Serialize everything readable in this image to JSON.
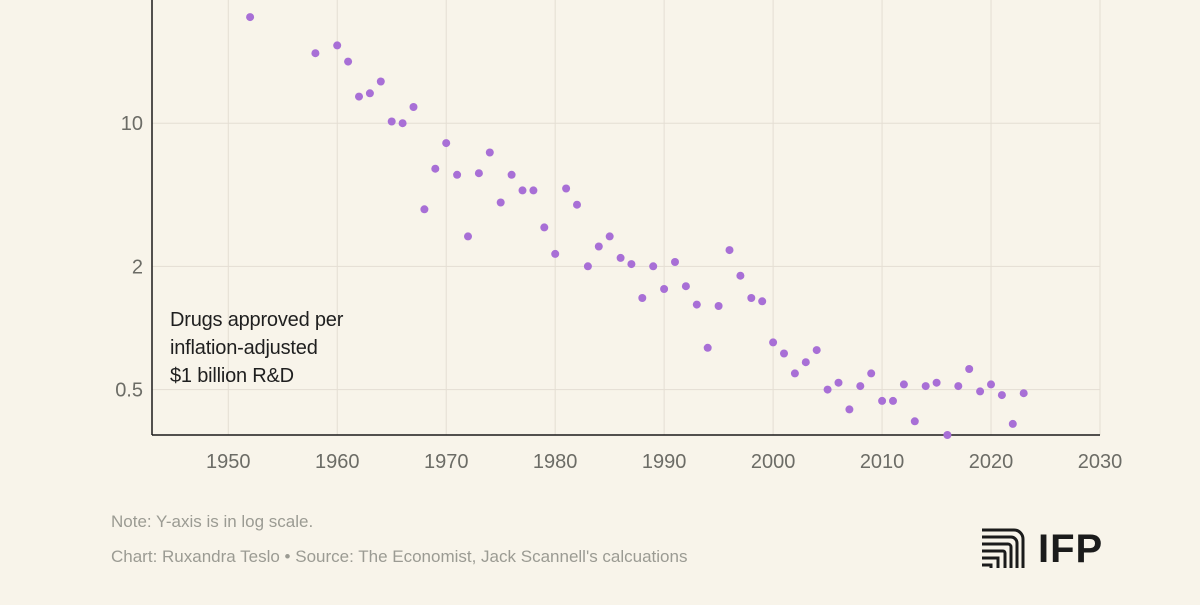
{
  "chart_data": {
    "type": "scatter",
    "yscale": "log",
    "xlim": [
      1943,
      2030
    ],
    "ylim": [
      0.3,
      40
    ],
    "x_ticks": [
      1950,
      1960,
      1970,
      1980,
      1990,
      2000,
      2010,
      2020,
      2030
    ],
    "y_ticks": [
      10,
      2,
      0.5
    ],
    "grid": true,
    "annotation": [
      "Drugs approved per",
      "inflation-adjusted",
      "$1 billion R&D"
    ],
    "point_color": "#a86fd6",
    "series": [
      {
        "points": [
          [
            1952,
            33
          ],
          [
            1958,
            22
          ],
          [
            1960,
            24
          ],
          [
            1961,
            20
          ],
          [
            1962,
            13.5
          ],
          [
            1963,
            14
          ],
          [
            1964,
            16
          ],
          [
            1965,
            10.2
          ],
          [
            1966,
            10
          ],
          [
            1967,
            12
          ],
          [
            1968,
            3.8
          ],
          [
            1969,
            6
          ],
          [
            1970,
            8
          ],
          [
            1971,
            5.6
          ],
          [
            1972,
            2.8
          ],
          [
            1973,
            5.7
          ],
          [
            1974,
            7.2
          ],
          [
            1975,
            4.1
          ],
          [
            1976,
            5.6
          ],
          [
            1977,
            4.7
          ],
          [
            1978,
            4.7
          ],
          [
            1979,
            3.1
          ],
          [
            1980,
            2.3
          ],
          [
            1981,
            4.8
          ],
          [
            1982,
            4.0
          ],
          [
            1983,
            2.0
          ],
          [
            1984,
            2.5
          ],
          [
            1985,
            2.8
          ],
          [
            1986,
            2.2
          ],
          [
            1987,
            2.05
          ],
          [
            1988,
            1.4
          ],
          [
            1989,
            2.0
          ],
          [
            1990,
            1.55
          ],
          [
            1991,
            2.1
          ],
          [
            1992,
            1.6
          ],
          [
            1993,
            1.3
          ],
          [
            1994,
            0.8
          ],
          [
            1995,
            1.28
          ],
          [
            1996,
            2.4
          ],
          [
            1997,
            1.8
          ],
          [
            1998,
            1.4
          ],
          [
            1999,
            1.35
          ],
          [
            2000,
            0.85
          ],
          [
            2001,
            0.75
          ],
          [
            2002,
            0.6
          ],
          [
            2003,
            0.68
          ],
          [
            2004,
            0.78
          ],
          [
            2005,
            0.5
          ],
          [
            2006,
            0.54
          ],
          [
            2007,
            0.4
          ],
          [
            2008,
            0.52
          ],
          [
            2009,
            0.6
          ],
          [
            2010,
            0.44
          ],
          [
            2011,
            0.44
          ],
          [
            2012,
            0.53
          ],
          [
            2013,
            0.35
          ],
          [
            2014,
            0.52
          ],
          [
            2015,
            0.54
          ],
          [
            2016,
            0.3
          ],
          [
            2017,
            0.52
          ],
          [
            2018,
            0.63
          ],
          [
            2019,
            0.49
          ],
          [
            2020,
            0.53
          ],
          [
            2021,
            0.47
          ],
          [
            2022,
            0.34
          ],
          [
            2023,
            0.48
          ]
        ]
      }
    ]
  },
  "footer": {
    "note": "Note: Y-axis is in log scale.",
    "credit": "Chart: Ruxandra Teslo • Source: The Economist, Jack Scannell's calcuations"
  },
  "logo": {
    "text": "IFP",
    "icon": "ifp-stripes-icon"
  },
  "colors": {
    "background": "#f8f4ea",
    "grid": "#e4ded3",
    "axis": "#1a1a1a",
    "tick_label": "#6c6c66",
    "footer_text": "#9b9b93"
  }
}
